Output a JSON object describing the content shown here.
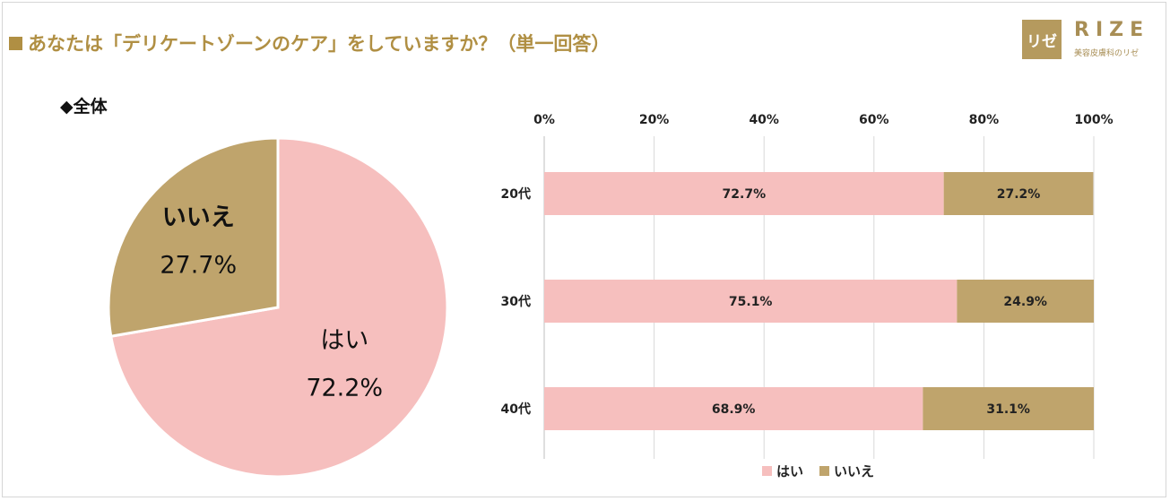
{
  "title": "■あなたは「デリケートゾーンのケア」をしていますか？（単一回答）",
  "title_text": "あなたは「デリケートゾーンのケア」をしていますか？（単一回答）",
  "logo": {
    "mark": "リゼ",
    "word": "RIZE",
    "sub": "美容皮膚科のリゼ"
  },
  "colors": {
    "yes": "#f6bfbe",
    "no": "#bfa46c",
    "accent": "#b08f43"
  },
  "chart_data": [
    {
      "type": "pie",
      "title": "◆全体",
      "slices": [
        {
          "label": "はい",
          "value": 72.2,
          "display": "72.2%",
          "color": "#f6bfbe"
        },
        {
          "label": "いいえ",
          "value": 27.7,
          "display": "27.7%",
          "color": "#bfa46c"
        }
      ]
    },
    {
      "type": "bar",
      "orientation": "horizontal",
      "stacked": true,
      "categories": [
        "20代",
        "30代",
        "40代"
      ],
      "series": [
        {
          "name": "はい",
          "values": [
            72.7,
            75.1,
            68.9
          ],
          "labels": [
            "72.7%",
            "75.1%",
            "68.9%"
          ],
          "color": "#f6bfbe"
        },
        {
          "name": "いいえ",
          "values": [
            27.2,
            24.9,
            31.1
          ],
          "labels": [
            "27.2%",
            "24.9%",
            "31.1%"
          ],
          "color": "#bfa46c"
        }
      ],
      "xlim": [
        0,
        100
      ],
      "ticks": [
        "0%",
        "20%",
        "40%",
        "60%",
        "80%",
        "100%"
      ],
      "grid": true,
      "legend": "bottom"
    }
  ]
}
